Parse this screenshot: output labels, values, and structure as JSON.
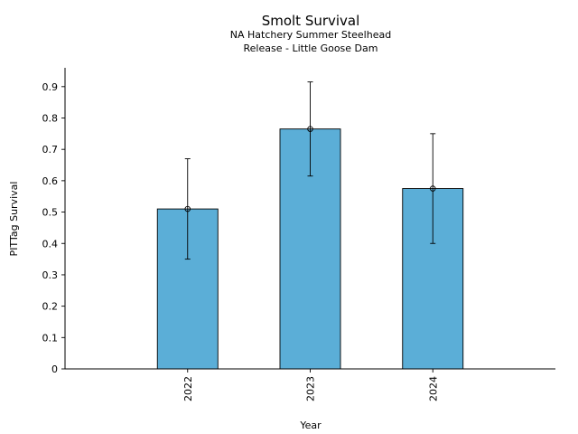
{
  "chart_data": {
    "type": "bar",
    "title": "Smolt Survival",
    "subtitle_lines": [
      "NA Hatchery Summer Steelhead",
      "Release - Little Goose Dam"
    ],
    "xlabel": "Year",
    "ylabel": "PITTag Survival",
    "categories": [
      "2022",
      "2023",
      "2024"
    ],
    "values": [
      0.51,
      0.765,
      0.575
    ],
    "error_low": [
      0.35,
      0.615,
      0.4
    ],
    "error_high": [
      0.67,
      0.915,
      0.75
    ],
    "ylim": [
      0,
      0.96
    ],
    "yticks": [
      0,
      0.1,
      0.2,
      0.3,
      0.4,
      0.5,
      0.6,
      0.7,
      0.8,
      0.9
    ],
    "ytick_labels": [
      "0",
      "0.1",
      "0.2",
      "0.3",
      "0.4",
      "0.5",
      "0.6",
      "0.7",
      "0.8",
      "0.9"
    ],
    "grid": false,
    "bar_color": "#5BAED7",
    "edge_color": "#000000"
  }
}
